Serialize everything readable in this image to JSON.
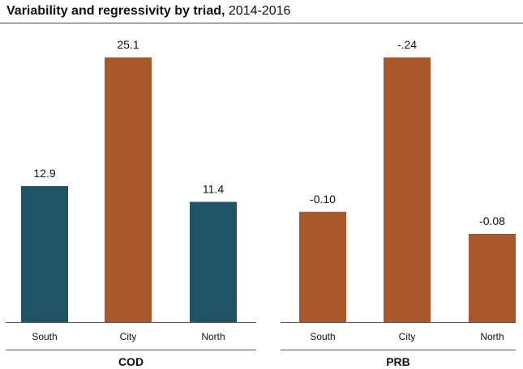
{
  "title": {
    "bold": "Variability and regressivity by triad,",
    "rest": " 2014-2016"
  },
  "colors": {
    "teal": "#1f5466",
    "orange": "#a9572d",
    "axis": "#555555"
  },
  "chart_data": [
    {
      "type": "bar",
      "group_label": "COD",
      "categories": [
        "South",
        "City",
        "North"
      ],
      "values": [
        12.9,
        25.1,
        11.4
      ],
      "labels": [
        "12.9",
        "25.1",
        "11.4"
      ],
      "colors": [
        "teal",
        "orange",
        "teal"
      ],
      "ylim": [
        0,
        25.1
      ]
    },
    {
      "type": "bar",
      "group_label": "PRB",
      "categories": [
        "South",
        "City",
        "North"
      ],
      "values": [
        -0.1,
        -0.24,
        -0.08
      ],
      "labels": [
        "-0.10",
        "-.24",
        "-0.08"
      ],
      "colors": [
        "orange",
        "orange",
        "orange"
      ],
      "ylim": [
        0,
        -0.24
      ]
    }
  ]
}
